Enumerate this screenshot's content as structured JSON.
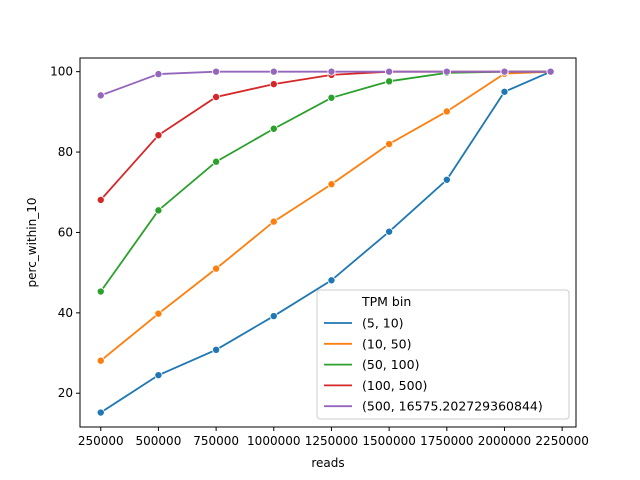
{
  "chart_data": {
    "type": "line",
    "title": "",
    "xlabel": "reads",
    "ylabel": "perc_within_10",
    "xlim": [
      160000,
      2310000
    ],
    "ylim": [
      11.6,
      103.4
    ],
    "xticks": [
      250000,
      500000,
      750000,
      1000000,
      1250000,
      1500000,
      1750000,
      2000000,
      2250000
    ],
    "yticks": [
      20,
      40,
      60,
      80,
      100
    ],
    "grid": false,
    "legend": {
      "title": "TPM bin",
      "placement": "lower right"
    },
    "x": [
      250000,
      500000,
      750000,
      1000000,
      1250000,
      1500000,
      1750000,
      2000000,
      2200000
    ],
    "series": [
      {
        "name": "(5, 10)",
        "color": "#1f77b4",
        "values": [
          15.2,
          24.5,
          30.8,
          39.2,
          48.1,
          60.2,
          73.1,
          95.0,
          100.0
        ]
      },
      {
        "name": "(10, 50)",
        "color": "#ff7f0e",
        "values": [
          28.1,
          39.8,
          51.0,
          62.7,
          72.0,
          82.0,
          90.1,
          99.5,
          100.0
        ]
      },
      {
        "name": "(50, 100)",
        "color": "#2ca02c",
        "values": [
          45.3,
          65.5,
          77.6,
          85.8,
          93.5,
          97.6,
          99.7,
          100.0,
          100.0
        ]
      },
      {
        "name": "(100, 500)",
        "color": "#d62728",
        "values": [
          68.1,
          84.2,
          93.7,
          96.9,
          99.2,
          100.0,
          100.0,
          100.0,
          100.0
        ]
      },
      {
        "name": "(500, 16575.202729360844)",
        "color": "#9467bd",
        "values": [
          94.1,
          99.4,
          100.0,
          100.0,
          100.0,
          100.0,
          100.0,
          100.0,
          100.0
        ]
      }
    ]
  }
}
